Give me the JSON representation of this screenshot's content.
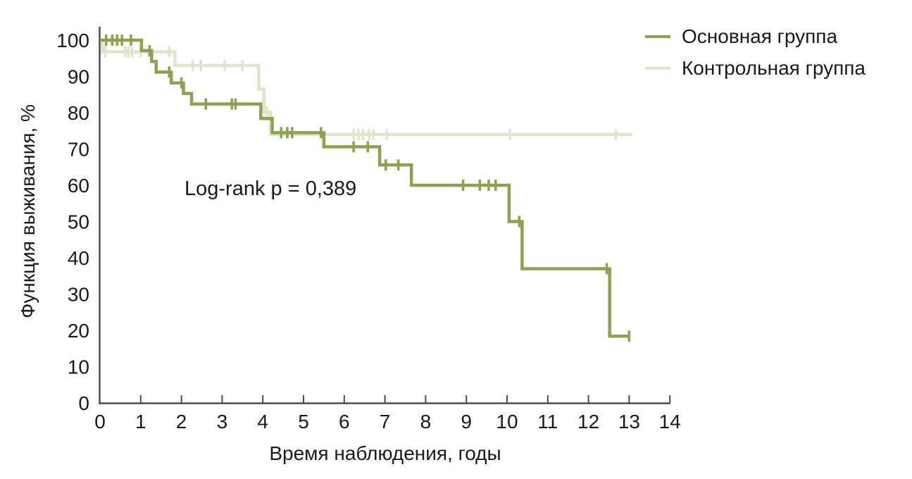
{
  "figure": {
    "y_axis_title": "Функция выживания, %",
    "x_axis_title": "Время наблюдения, годы",
    "annotation": "Log-rank p = 0,389",
    "legend": [
      {
        "label": "Основная группа",
        "color": "#8ca24e"
      },
      {
        "label": "Контрольная группа",
        "color": "#dfe5c9"
      }
    ]
  },
  "colors": {
    "background": "#ffffff",
    "axis": "#4d4d4d",
    "text": "#1a1a1a",
    "main_group": "#8ca24e",
    "control_group": "#dfe5c9"
  },
  "chart_data": {
    "type": "line",
    "subtype": "kaplan-meier-step",
    "title": "",
    "xlabel": "Время наблюдения, годы",
    "ylabel": "Функция выживания, %",
    "xlim": [
      0,
      14
    ],
    "ylim": [
      0,
      100
    ],
    "xticks": [
      0,
      1,
      2,
      3,
      4,
      5,
      6,
      7,
      8,
      9,
      10,
      11,
      12,
      13,
      14
    ],
    "yticks": [
      0,
      10,
      20,
      30,
      40,
      50,
      60,
      70,
      80,
      90,
      100
    ],
    "grid": false,
    "legend_position": "top-right",
    "annotation": {
      "text": "Log-rank p = 0,389",
      "x": 2.1,
      "y": 58
    },
    "series": [
      {
        "name": "Контрольная группа",
        "color": "#dfe5c9",
        "points": [
          [
            0,
            100
          ],
          [
            0.06,
            96.8
          ],
          [
            1.84,
            93.0
          ],
          [
            3.9,
            86.5
          ],
          [
            4.03,
            80.2
          ],
          [
            4.19,
            74.0
          ],
          [
            13.08,
            74.0
          ]
        ],
        "censors": [
          [
            0.13,
            96.8
          ],
          [
            0.62,
            96.8
          ],
          [
            0.7,
            96.8
          ],
          [
            0.79,
            96.8
          ],
          [
            1.0,
            96.8
          ],
          [
            1.2,
            96.8
          ],
          [
            1.7,
            96.8
          ],
          [
            2.28,
            93.0
          ],
          [
            2.48,
            93.0
          ],
          [
            3.06,
            93.0
          ],
          [
            3.5,
            93.0
          ],
          [
            4.1,
            80.2
          ],
          [
            6.23,
            74.0
          ],
          [
            6.35,
            74.0
          ],
          [
            6.46,
            74.0
          ],
          [
            6.61,
            74.0
          ],
          [
            6.72,
            74.0
          ],
          [
            7.04,
            74.0
          ],
          [
            10.07,
            74.0
          ],
          [
            12.67,
            74.0
          ]
        ]
      },
      {
        "name": "Основная группа",
        "color": "#8ca24e",
        "points": [
          [
            0,
            100
          ],
          [
            1.02,
            97.1
          ],
          [
            1.27,
            94.1
          ],
          [
            1.38,
            91.2
          ],
          [
            1.75,
            88.2
          ],
          [
            2.05,
            85.3
          ],
          [
            2.25,
            82.4
          ],
          [
            3.95,
            78.4
          ],
          [
            4.23,
            74.5
          ],
          [
            5.5,
            70.6
          ],
          [
            6.87,
            65.6
          ],
          [
            7.65,
            60.0
          ],
          [
            10.05,
            50.0
          ],
          [
            10.37,
            37.0
          ],
          [
            12.52,
            18.4
          ],
          [
            13.0,
            18.4
          ]
        ],
        "censors": [
          [
            0.15,
            100
          ],
          [
            0.3,
            100
          ],
          [
            0.42,
            100
          ],
          [
            0.54,
            100
          ],
          [
            0.76,
            100
          ],
          [
            1.22,
            97.1
          ],
          [
            1.7,
            91.2
          ],
          [
            2.0,
            88.2
          ],
          [
            2.6,
            82.4
          ],
          [
            3.24,
            82.4
          ],
          [
            3.33,
            82.4
          ],
          [
            4.45,
            74.5
          ],
          [
            4.6,
            74.5
          ],
          [
            4.72,
            74.5
          ],
          [
            5.43,
            74.5
          ],
          [
            6.23,
            70.6
          ],
          [
            6.58,
            70.6
          ],
          [
            7.02,
            65.6
          ],
          [
            7.33,
            65.6
          ],
          [
            8.92,
            60.0
          ],
          [
            9.33,
            60.0
          ],
          [
            9.55,
            60.0
          ],
          [
            9.72,
            60.0
          ],
          [
            10.3,
            50.0
          ],
          [
            12.45,
            37.0
          ],
          [
            13.0,
            18.4
          ]
        ]
      }
    ]
  }
}
